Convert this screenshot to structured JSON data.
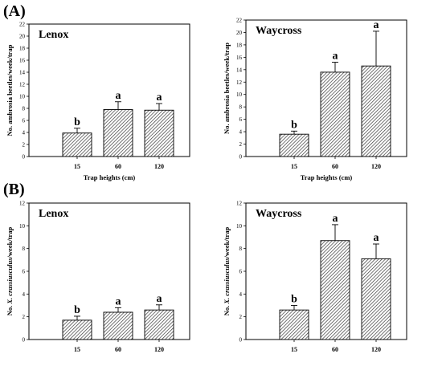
{
  "panel_labels": {
    "a": "(A)",
    "b": "(B)"
  },
  "style": {
    "bar_fill": "#ffffff",
    "hatch_color": "#3a3a3a",
    "frame_color": "#000000"
  },
  "chart_data": [
    {
      "type": "bar",
      "title": "Lenox",
      "xlabel": "Trap heights (cm)",
      "ylabel": "No. ambrosia beetles/week/trap",
      "ylim": [
        0,
        22
      ],
      "yticks": [
        0,
        2,
        4,
        6,
        8,
        10,
        12,
        14,
        16,
        18,
        20,
        22
      ],
      "categories": [
        "15",
        "60",
        "120"
      ],
      "values": [
        3.9,
        7.8,
        7.7
      ],
      "errors": [
        0.8,
        1.3,
        1.1
      ],
      "significance": [
        "b",
        "a",
        "a"
      ],
      "grid": false
    },
    {
      "type": "bar",
      "title": "Waycross",
      "xlabel": "Trap heights (cm)",
      "ylabel": "No. ambrosia beetles/week/trap",
      "ylim": [
        0,
        22
      ],
      "yticks": [
        0,
        2,
        4,
        6,
        8,
        10,
        12,
        14,
        16,
        18,
        20,
        22
      ],
      "categories": [
        "15",
        "60",
        "120"
      ],
      "values": [
        3.6,
        13.6,
        14.6
      ],
      "errors": [
        0.5,
        1.6,
        5.6
      ],
      "significance": [
        "b",
        "a",
        "a"
      ],
      "grid": false
    },
    {
      "type": "bar",
      "title": "Lenox",
      "xlabel": "",
      "ylabel": "No. X. crassiusculus/week/trap",
      "ylim": [
        0,
        12
      ],
      "yticks": [
        0,
        2,
        4,
        6,
        8,
        10,
        12
      ],
      "categories": [
        "15",
        "60",
        "120"
      ],
      "values": [
        1.7,
        2.4,
        2.6
      ],
      "errors": [
        0.35,
        0.4,
        0.45
      ],
      "significance": [
        "b",
        "a",
        "a"
      ],
      "grid": false
    },
    {
      "type": "bar",
      "title": "Waycross",
      "xlabel": "",
      "ylabel": "No. X. crassiusculus/week/trap",
      "ylim": [
        0,
        12
      ],
      "yticks": [
        0,
        2,
        4,
        6,
        8,
        10,
        12
      ],
      "categories": [
        "15",
        "60",
        "120"
      ],
      "values": [
        2.6,
        8.7,
        7.1
      ],
      "errors": [
        0.4,
        1.4,
        1.3
      ],
      "significance": [
        "b",
        "a",
        "a"
      ],
      "grid": false
    }
  ]
}
